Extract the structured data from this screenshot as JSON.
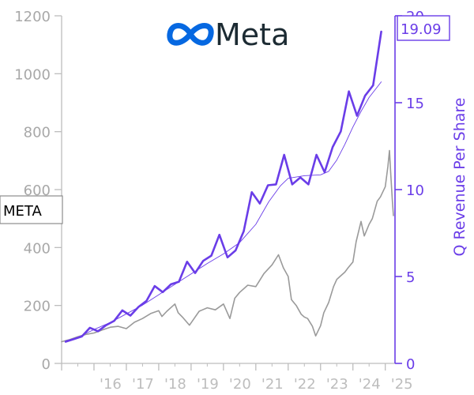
{
  "brand": {
    "name": "Meta",
    "logo": "meta-infinity-logo",
    "logo_color": "#0668e1",
    "text_color": "#1c2b33"
  },
  "ticker": "META",
  "badge": "19.09",
  "chart_data": {
    "type": "line",
    "title": "",
    "xlabel": "",
    "ylabel_left": "",
    "ylabel_right": "Q Revenue Per Share",
    "x_tick_labels": [
      "'16",
      "'17",
      "'18",
      "'19",
      "'20",
      "'21",
      "'22",
      "'23",
      "'24",
      "'25"
    ],
    "x_tick_years": [
      2016,
      2017,
      2018,
      2019,
      2020,
      2021,
      2022,
      2023,
      2024,
      2025
    ],
    "x_range": [
      2015.0,
      2025.3
    ],
    "y_left": {
      "ticks": [
        0,
        200,
        400,
        600,
        800,
        1000,
        1200
      ],
      "range": [
        0,
        1200
      ]
    },
    "y_right": {
      "ticks": [
        0,
        5,
        10,
        15,
        20
      ],
      "range": [
        0,
        20
      ]
    },
    "grid": false,
    "colors": {
      "price": "#9a9a9a",
      "revenue": "#6a3de8",
      "left_axis": "#bdbdbd",
      "right_axis": "#6a3de8"
    },
    "series": [
      {
        "axis": "left",
        "style": "price",
        "points": [
          [
            2015.0,
            75
          ],
          [
            2015.25,
            82
          ],
          [
            2015.5,
            92
          ],
          [
            2015.75,
            100
          ],
          [
            2016.0,
            105
          ],
          [
            2016.25,
            115
          ],
          [
            2016.5,
            125
          ],
          [
            2016.75,
            128
          ],
          [
            2017.0,
            120
          ],
          [
            2017.25,
            142
          ],
          [
            2017.5,
            155
          ],
          [
            2017.75,
            172
          ],
          [
            2018.0,
            182
          ],
          [
            2018.1,
            162
          ],
          [
            2018.25,
            180
          ],
          [
            2018.5,
            205
          ],
          [
            2018.6,
            175
          ],
          [
            2018.75,
            158
          ],
          [
            2018.95,
            132
          ],
          [
            2019.0,
            140
          ],
          [
            2019.25,
            180
          ],
          [
            2019.5,
            192
          ],
          [
            2019.75,
            185
          ],
          [
            2020.0,
            205
          ],
          [
            2020.2,
            155
          ],
          [
            2020.35,
            225
          ],
          [
            2020.5,
            245
          ],
          [
            2020.75,
            270
          ],
          [
            2021.0,
            265
          ],
          [
            2021.25,
            310
          ],
          [
            2021.5,
            340
          ],
          [
            2021.7,
            375
          ],
          [
            2021.85,
            330
          ],
          [
            2022.0,
            300
          ],
          [
            2022.1,
            220
          ],
          [
            2022.25,
            200
          ],
          [
            2022.4,
            170
          ],
          [
            2022.5,
            160
          ],
          [
            2022.6,
            155
          ],
          [
            2022.75,
            128
          ],
          [
            2022.85,
            95
          ],
          [
            2023.0,
            130
          ],
          [
            2023.1,
            175
          ],
          [
            2023.25,
            210
          ],
          [
            2023.4,
            265
          ],
          [
            2023.5,
            290
          ],
          [
            2023.6,
            300
          ],
          [
            2023.75,
            315
          ],
          [
            2023.85,
            330
          ],
          [
            2024.0,
            350
          ],
          [
            2024.1,
            420
          ],
          [
            2024.25,
            490
          ],
          [
            2024.35,
            440
          ],
          [
            2024.5,
            480
          ],
          [
            2024.6,
            500
          ],
          [
            2024.75,
            560
          ],
          [
            2024.85,
            575
          ],
          [
            2025.0,
            610
          ],
          [
            2025.08,
            680
          ],
          [
            2025.13,
            735
          ],
          [
            2025.17,
            650
          ],
          [
            2025.22,
            560
          ],
          [
            2025.25,
            510
          ]
        ]
      },
      {
        "axis": "right",
        "style": "revenue-quarterly",
        "name": "Q Revenue Per Share",
        "points": [
          [
            2015.125,
            1.25
          ],
          [
            2015.375,
            1.4
          ],
          [
            2015.625,
            1.55
          ],
          [
            2015.875,
            2.05
          ],
          [
            2016.125,
            1.85
          ],
          [
            2016.375,
            2.2
          ],
          [
            2016.625,
            2.45
          ],
          [
            2016.875,
            3.05
          ],
          [
            2017.125,
            2.75
          ],
          [
            2017.375,
            3.25
          ],
          [
            2017.625,
            3.6
          ],
          [
            2017.875,
            4.45
          ],
          [
            2018.125,
            4.1
          ],
          [
            2018.375,
            4.55
          ],
          [
            2018.625,
            4.7
          ],
          [
            2018.875,
            5.85
          ],
          [
            2019.125,
            5.2
          ],
          [
            2019.375,
            5.9
          ],
          [
            2019.625,
            6.2
          ],
          [
            2019.875,
            7.4
          ],
          [
            2020.125,
            6.1
          ],
          [
            2020.375,
            6.5
          ],
          [
            2020.625,
            7.6
          ],
          [
            2020.875,
            9.85
          ],
          [
            2021.125,
            9.2
          ],
          [
            2021.375,
            10.25
          ],
          [
            2021.625,
            10.3
          ],
          [
            2021.875,
            12.0
          ],
          [
            2022.125,
            10.3
          ],
          [
            2022.375,
            10.7
          ],
          [
            2022.625,
            10.3
          ],
          [
            2022.875,
            12.0
          ],
          [
            2023.125,
            11.0
          ],
          [
            2023.375,
            12.45
          ],
          [
            2023.625,
            13.35
          ],
          [
            2023.875,
            15.65
          ],
          [
            2024.125,
            14.25
          ],
          [
            2024.375,
            15.4
          ],
          [
            2024.625,
            16.0
          ],
          [
            2024.875,
            19.09
          ]
        ]
      },
      {
        "axis": "right",
        "style": "revenue-trend",
        "points": [
          [
            2015.125,
            1.3
          ],
          [
            2015.5,
            1.5
          ],
          [
            2016.0,
            1.95
          ],
          [
            2016.5,
            2.35
          ],
          [
            2017.0,
            2.85
          ],
          [
            2017.5,
            3.35
          ],
          [
            2018.0,
            3.95
          ],
          [
            2018.5,
            4.55
          ],
          [
            2019.0,
            5.15
          ],
          [
            2019.5,
            5.75
          ],
          [
            2020.0,
            6.3
          ],
          [
            2020.5,
            6.95
          ],
          [
            2021.0,
            8.0
          ],
          [
            2021.4,
            9.3
          ],
          [
            2021.75,
            10.2
          ],
          [
            2022.0,
            10.65
          ],
          [
            2022.5,
            10.8
          ],
          [
            2023.0,
            10.85
          ],
          [
            2023.25,
            11.05
          ],
          [
            2023.5,
            11.7
          ],
          [
            2023.75,
            12.6
          ],
          [
            2024.0,
            13.6
          ],
          [
            2024.25,
            14.5
          ],
          [
            2024.5,
            15.3
          ],
          [
            2024.875,
            16.2
          ]
        ]
      }
    ]
  }
}
